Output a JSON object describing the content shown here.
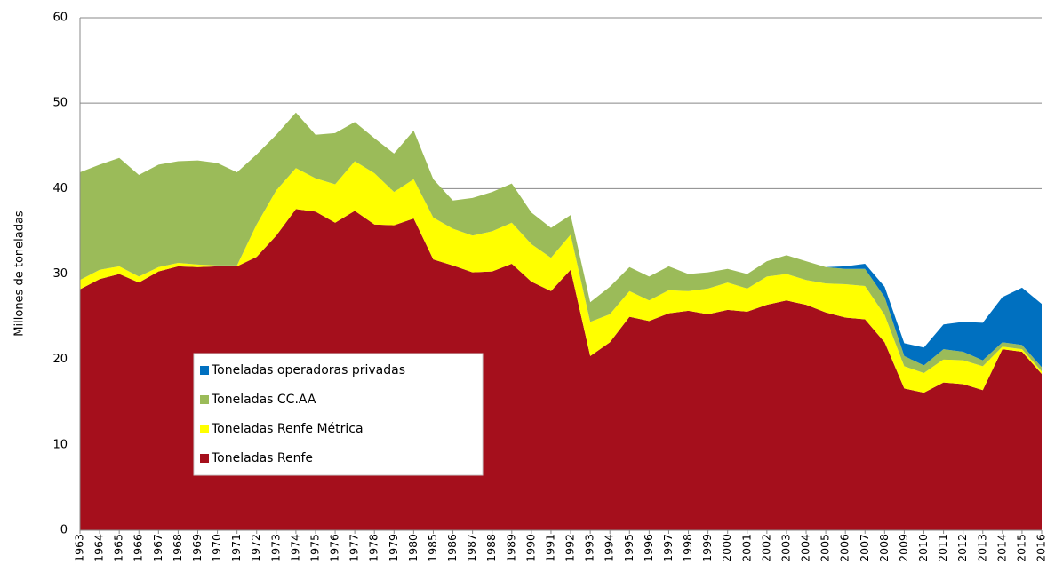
{
  "chart_data": {
    "type": "stacked_area",
    "y_axis_label": "Millones de toneladas",
    "categories": [
      "1963",
      "1964",
      "1965",
      "1966",
      "1967",
      "1968",
      "1969",
      "1970",
      "1971",
      "1972",
      "1973",
      "1974",
      "1975",
      "1976",
      "1977",
      "1978",
      "1979",
      "1980",
      "1985",
      "1986",
      "1987",
      "1988",
      "1989",
      "1990",
      "1991",
      "1992",
      "1993",
      "1994",
      "1995",
      "1996",
      "1997",
      "1998",
      "1999",
      "2000",
      "2001",
      "2002",
      "2003",
      "2004",
      "2005",
      "2006",
      "2007",
      "2008",
      "2009",
      "2010",
      "2011",
      "2012",
      "2013",
      "2014",
      "2015",
      "2016"
    ],
    "series": [
      {
        "name": "Toneladas Renfe",
        "color": "#a50f1c",
        "values": [
          28.2,
          29.4,
          30.0,
          29.0,
          30.3,
          30.9,
          30.8,
          30.9,
          30.9,
          32.0,
          34.5,
          37.6,
          37.3,
          36.0,
          37.4,
          35.8,
          35.7,
          36.5,
          31.7,
          31.0,
          30.2,
          30.3,
          31.2,
          29.1,
          28.0,
          30.5,
          20.4,
          22.0,
          25.0,
          24.5,
          25.4,
          25.7,
          25.3,
          25.8,
          25.6,
          26.4,
          26.9,
          26.4,
          25.5,
          24.9,
          24.7,
          22.0,
          16.6,
          16.1,
          17.3,
          17.1,
          16.4,
          21.2,
          20.9,
          18.3
        ]
      },
      {
        "name": "Toneladas Renfe Métrica",
        "color": "#ffff00",
        "values": [
          1.1,
          1.1,
          0.9,
          0.7,
          0.5,
          0.4,
          0.3,
          0.1,
          0.1,
          3.8,
          5.3,
          4.8,
          3.9,
          4.5,
          5.8,
          6.0,
          3.9,
          4.6,
          4.9,
          4.3,
          4.3,
          4.7,
          4.8,
          4.4,
          3.9,
          4.1,
          4.0,
          3.3,
          3.0,
          2.4,
          2.7,
          2.3,
          3.0,
          3.2,
          2.7,
          3.3,
          3.1,
          2.9,
          3.4,
          3.9,
          3.9,
          3.2,
          2.6,
          2.3,
          2.7,
          2.8,
          2.8,
          0.3,
          0.3,
          0.3
        ]
      },
      {
        "name": "Toneladas CC.AA",
        "color": "#9bbb59",
        "values": [
          12.6,
          12.3,
          12.7,
          11.9,
          12.0,
          11.9,
          12.2,
          12.0,
          10.9,
          8.2,
          6.5,
          6.5,
          5.1,
          6.0,
          4.6,
          4.1,
          4.5,
          5.7,
          4.5,
          3.3,
          4.4,
          4.6,
          4.6,
          3.7,
          3.5,
          2.3,
          2.3,
          3.2,
          2.8,
          2.8,
          2.8,
          2.0,
          1.9,
          1.6,
          1.7,
          1.8,
          2.2,
          2.2,
          1.9,
          1.8,
          2.0,
          2.1,
          1.2,
          0.9,
          1.2,
          1.0,
          0.7,
          0.5,
          0.5,
          0.5
        ]
      },
      {
        "name": "Toneladas operadoras privadas",
        "color": "#0070c0",
        "values": [
          0,
          0,
          0,
          0,
          0,
          0,
          0,
          0,
          0,
          0,
          0,
          0,
          0,
          0,
          0,
          0,
          0,
          0,
          0,
          0,
          0,
          0,
          0,
          0,
          0,
          0,
          0,
          0,
          0,
          0,
          0,
          0,
          0,
          0,
          0,
          0,
          0,
          0,
          0,
          0.3,
          0.6,
          1.2,
          1.5,
          2.1,
          2.9,
          3.5,
          4.4,
          5.3,
          6.7,
          7.4
        ]
      }
    ],
    "ylim": [
      0,
      60
    ],
    "yticks": [
      0,
      10,
      20,
      30,
      40,
      50,
      60
    ],
    "grid": true
  }
}
